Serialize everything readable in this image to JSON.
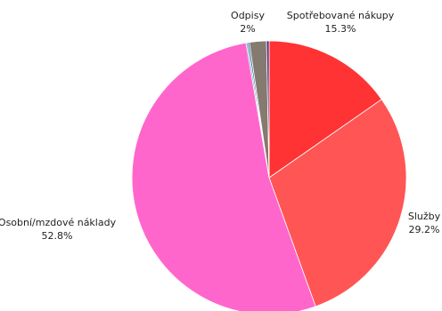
{
  "chart_data": {
    "type": "pie",
    "slices": [
      {
        "label": "Spotřebované nákupy",
        "display": "15.3%",
        "value": 15.3,
        "color": "#ff3333"
      },
      {
        "label": "Služby",
        "display": "29.2%",
        "value": 29.2,
        "color": "#ff5555"
      },
      {
        "label": "Osobní/mzdové náklady",
        "display": "52.8%",
        "value": 52.8,
        "color": "#ff66cc"
      },
      {
        "label": "",
        "display": "",
        "value": 0.2,
        "color": "#66aabb"
      },
      {
        "label": "",
        "display": "",
        "value": 0.2,
        "color": "#2f5f8f"
      },
      {
        "label": "Odpisy",
        "display": "2%",
        "value": 2.0,
        "color": "#857a70"
      },
      {
        "label": "",
        "display": "",
        "value": 0.3,
        "color": "#552277"
      }
    ]
  }
}
